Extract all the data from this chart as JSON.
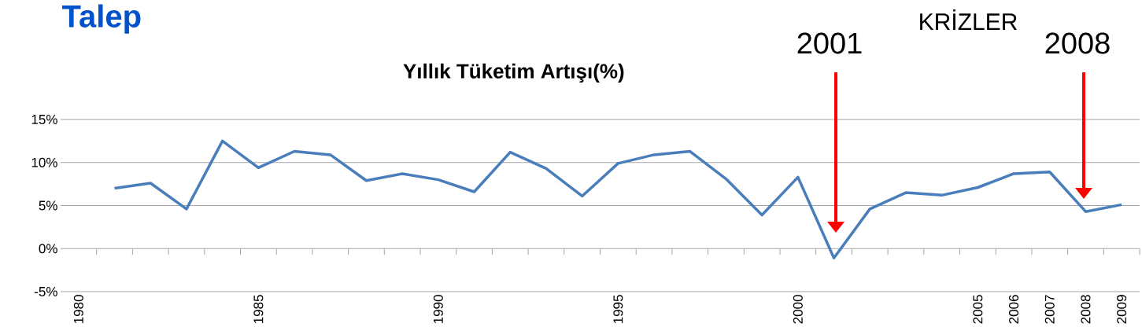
{
  "chart_data": {
    "type": "line",
    "title": "Talep",
    "subtitle": "Yıllık Tüketim Artışı(%)",
    "x": [
      1981,
      1982,
      1983,
      1984,
      1985,
      1986,
      1987,
      1988,
      1989,
      1990,
      1991,
      1992,
      1993,
      1994,
      1995,
      1996,
      1997,
      1998,
      1999,
      2000,
      2001,
      2002,
      2003,
      2004,
      2005,
      2006,
      2007,
      2008,
      2009
    ],
    "series": [
      {
        "color": "#4a7ebb",
        "values": [
          7.0,
          7.6,
          4.6,
          12.5,
          9.4,
          11.3,
          10.9,
          7.9,
          8.7,
          8.0,
          6.6,
          11.2,
          9.3,
          6.1,
          9.9,
          10.9,
          11.3,
          8.1,
          3.9,
          8.3,
          -1.1,
          4.6,
          6.5,
          6.2,
          7.1,
          8.7,
          8.9,
          4.3,
          5.1
        ]
      }
    ],
    "xlim": [
      1979.5,
      2009.5
    ],
    "xticks": [
      1980,
      1985,
      1990,
      1995,
      2000,
      2005,
      2006,
      2007,
      2008,
      2009,
      {
        "value": 1980.5,
        "label": null
      },
      {
        "value": 1981.5,
        "label": null
      },
      {
        "value": 1982.5,
        "label": null
      },
      {
        "value": 1983.5,
        "label": null
      },
      {
        "value": 1984.5,
        "label": null
      },
      {
        "value": 1985.5,
        "label": null
      },
      {
        "value": 1986.5,
        "label": null
      },
      {
        "value": 1987.5,
        "label": null
      },
      {
        "value": 1988.5,
        "label": null
      },
      {
        "value": 1989.5,
        "label": null
      },
      {
        "value": 1990.5,
        "label": null
      },
      {
        "value": 1991.5,
        "label": null
      },
      {
        "value": 1992.5,
        "label": null
      },
      {
        "value": 1993.5,
        "label": null
      },
      {
        "value": 1994.5,
        "label": null
      },
      {
        "value": 1995.5,
        "label": null
      },
      {
        "value": 1996.5,
        "label": null
      },
      {
        "value": 1997.5,
        "label": null
      },
      {
        "value": 1998.5,
        "label": null
      },
      {
        "value": 1999.5,
        "label": null
      },
      {
        "value": 2000.5,
        "label": null
      },
      {
        "value": 2001.5,
        "label": null
      },
      {
        "value": 2002.5,
        "label": null
      },
      {
        "value": 2003.5,
        "label": null
      },
      {
        "value": 2004.5,
        "label": null
      },
      {
        "value": 2005.5,
        "label": null
      },
      {
        "value": 2006.5,
        "label": null
      },
      {
        "value": 2007.5,
        "label": null
      },
      {
        "value": 2008.5,
        "label": null
      },
      {
        "value": 2009.5,
        "label": null
      }
    ],
    "ylim": [
      -5,
      15
    ],
    "yticks": [
      {
        "value": -5,
        "label": "-5%"
      },
      {
        "value": 0,
        "label": "0%"
      },
      {
        "value": 5,
        "label": "5%"
      },
      {
        "value": 10,
        "label": "10%"
      },
      {
        "value": 15,
        "label": "15%"
      }
    ],
    "grid": "y",
    "marker": "none",
    "line_style": "solid",
    "annotations": [
      "KRİZLER",
      "2001",
      "2008"
    ]
  }
}
